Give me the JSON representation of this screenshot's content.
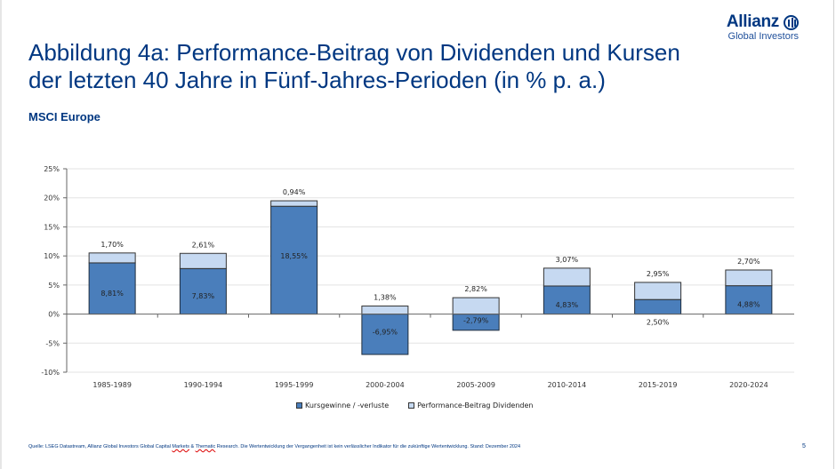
{
  "brand": {
    "name": "Allianz",
    "sub": "Global Investors",
    "logo_icon": "allianz-eagle-circle-icon",
    "color": "#003781"
  },
  "header": {
    "title_line1": "Abbildung 4a: Performance-Beitrag von Dividenden und Kursen",
    "title_line2": "der letzten 40 Jahre in Fünf-Jahres-Perioden (in % p. a.)",
    "subtitle": "MSCI Europe"
  },
  "chart_data": {
    "type": "bar",
    "stacked": true,
    "title": "",
    "xlabel": "",
    "ylabel": "",
    "ylim": [
      -10,
      25
    ],
    "yticks": [
      25,
      20,
      15,
      10,
      5,
      0,
      -5,
      -10
    ],
    "ytick_labels": [
      "25%",
      "20%",
      "15%",
      "10%",
      "5%",
      "0%",
      "-5%",
      "-10%"
    ],
    "grid": true,
    "legend_position": "bottom",
    "categories": [
      "1985-1989",
      "1990-1994",
      "1995-1999",
      "2000-2004",
      "2005-2009",
      "2010-2014",
      "2015-2019",
      "2020-2024"
    ],
    "series": [
      {
        "name": "Kursgewinne / -verluste",
        "color": "#4a7ebb",
        "values": [
          8.81,
          7.83,
          18.55,
          -6.95,
          -2.79,
          4.83,
          2.5,
          4.88
        ],
        "labels": [
          "8,81%",
          "7,83%",
          "18,55%",
          "-6,95%",
          "-2,79%",
          "4,83%",
          "2,50%",
          "4,88%"
        ]
      },
      {
        "name": "Performance-Beitrag Dividenden",
        "color": "#c6d9f1",
        "values": [
          1.7,
          2.61,
          0.94,
          1.38,
          2.82,
          3.07,
          2.95,
          2.7
        ],
        "labels": [
          "1,70%",
          "2,61%",
          "0,94%",
          "1,38%",
          "2,82%",
          "3,07%",
          "2,95%",
          "2,70%"
        ]
      }
    ]
  },
  "footer": {
    "source_prefix": "Quelle: LSEG Datastream, Allianz Global Investors Global Capital ",
    "source_markets": "Markets",
    "source_amp": " & ",
    "source_thematic": "Thematic",
    "source_suffix": " Research. Die Wertentwicklung der Vergangenheit ist kein verlässlicher Indikator für die zukünftige Wertentwicklung. Stand: Dezember 2024",
    "page_number": "5"
  }
}
